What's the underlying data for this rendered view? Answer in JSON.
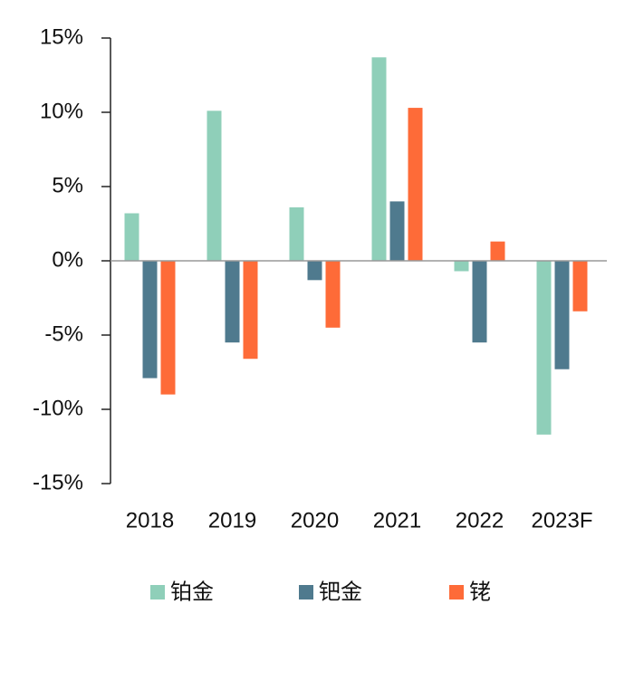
{
  "chart_data": {
    "type": "bar",
    "categories": [
      "2018",
      "2019",
      "2020",
      "2021",
      "2022",
      "2023F"
    ],
    "series": [
      {
        "name": "铂金",
        "color": "#8fcfb9",
        "values": [
          3.2,
          10.1,
          3.6,
          13.7,
          -0.7,
          -11.7
        ]
      },
      {
        "name": "钯金",
        "color": "#4f7a8e",
        "values": [
          -7.9,
          -5.5,
          -1.3,
          4.0,
          -5.5,
          -7.3
        ]
      },
      {
        "name": "铑",
        "color": "#fe6b38",
        "values": [
          -9.0,
          -6.6,
          -4.5,
          10.3,
          1.3,
          -3.4
        ]
      }
    ],
    "ylim": [
      -15,
      15
    ],
    "yticks": [
      {
        "value": -15,
        "label": "-15%"
      },
      {
        "value": -10,
        "label": "-10%"
      },
      {
        "value": -5,
        "label": "-5%"
      },
      {
        "value": 0,
        "label": "0%"
      },
      {
        "value": 5,
        "label": "5%"
      },
      {
        "value": 10,
        "label": "10%"
      },
      {
        "value": 15,
        "label": "15%"
      }
    ],
    "legend": "bottom"
  }
}
